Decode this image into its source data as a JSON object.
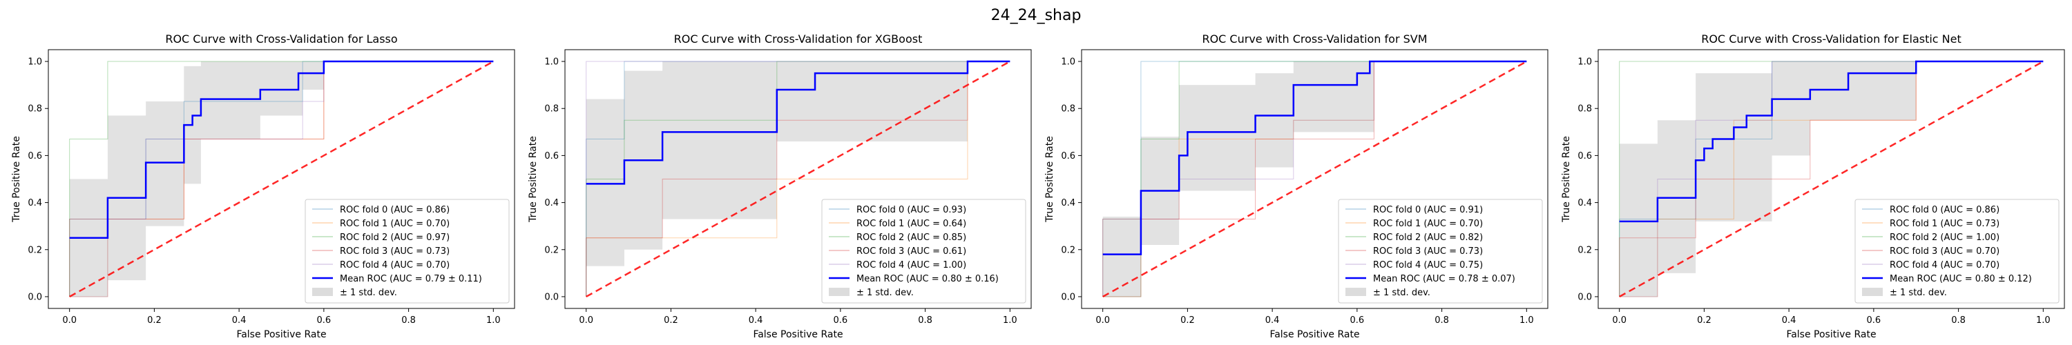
{
  "suptitle": "24_24_shap",
  "colors": {
    "fold0": "#1f77b4",
    "fold1": "#ff7f0e",
    "fold2": "#2ca02c",
    "fold3": "#d62728",
    "fold4": "#9467bd",
    "mean": "#0000ff",
    "chance": "#ff0000",
    "band": "#bfbfbf"
  },
  "chart_data": [
    {
      "type": "line",
      "title": "ROC Curve with Cross-Validation for Lasso",
      "xlabel": "False Positive Rate",
      "ylabel": "True Positive Rate",
      "xlim": [
        -0.05,
        1.05
      ],
      "ylim": [
        -0.05,
        1.05
      ],
      "xticks": [
        "0.0",
        "0.2",
        "0.4",
        "0.6",
        "0.8",
        "1.0"
      ],
      "yticks": [
        "0.0",
        "0.2",
        "0.4",
        "0.6",
        "0.8",
        "1.0"
      ],
      "grid": false,
      "legend_position": "lower right",
      "folds": [
        {
          "name": "ROC fold 0 (AUC = 0.86)",
          "x": [
            0,
            0,
            0.18,
            0.18,
            0.27,
            0.27,
            0.55,
            0.55,
            1.0
          ],
          "y": [
            0,
            0.33,
            0.33,
            0.67,
            0.67,
            0.83,
            0.83,
            1.0,
            1.0
          ]
        },
        {
          "name": "ROC fold 1 (AUC = 0.70)",
          "x": [
            0,
            0.09,
            0.09,
            0.27,
            0.27,
            0.6,
            0.6,
            1.0
          ],
          "y": [
            0,
            0,
            0.33,
            0.33,
            0.67,
            0.67,
            1.0,
            1.0
          ]
        },
        {
          "name": "ROC fold 2 (AUC = 0.97)",
          "x": [
            0,
            0,
            0.09,
            0.09,
            1.0
          ],
          "y": [
            0,
            0.67,
            0.67,
            1.0,
            1.0
          ]
        },
        {
          "name": "ROC fold 3 (AUC = 0.73)",
          "x": [
            0,
            0,
            0.27,
            0.27,
            0.6,
            0.6,
            1.0
          ],
          "y": [
            0,
            0.33,
            0.33,
            0.67,
            0.67,
            1.0,
            1.0
          ]
        },
        {
          "name": "ROC fold 4 (AUC = 0.70)",
          "x": [
            0,
            0.09,
            0.09,
            0.18,
            0.18,
            0.55,
            0.55,
            0.6,
            0.6,
            1.0
          ],
          "y": [
            0,
            0,
            0.33,
            0.33,
            0.67,
            0.67,
            0.83,
            0.83,
            1.0,
            1.0
          ]
        }
      ],
      "mean": {
        "name": "Mean ROC (AUC = 0.79 ± 0.11)",
        "x": [
          0,
          0.0,
          0.09,
          0.09,
          0.18,
          0.18,
          0.27,
          0.27,
          0.29,
          0.29,
          0.31,
          0.31,
          0.45,
          0.45,
          0.54,
          0.54,
          0.6,
          0.6,
          1.0
        ],
        "y": [
          0.25,
          0.25,
          0.25,
          0.42,
          0.42,
          0.57,
          0.57,
          0.73,
          0.73,
          0.77,
          0.77,
          0.84,
          0.84,
          0.88,
          0.88,
          0.95,
          0.95,
          1.0,
          1.0
        ]
      },
      "std_band": {
        "name": "± 1 std. dev.",
        "x": [
          0,
          0.09,
          0.09,
          0.18,
          0.18,
          0.27,
          0.27,
          0.31,
          0.31,
          0.45,
          0.45,
          0.55,
          0.55,
          0.6,
          0.6,
          1.0
        ],
        "upper": [
          0.5,
          0.5,
          0.77,
          0.77,
          0.83,
          0.83,
          0.98,
          0.98,
          1.0,
          1.0,
          1.0,
          1.0,
          1.0,
          1.0,
          1.0,
          1.0
        ],
        "lower": [
          0.0,
          0.0,
          0.07,
          0.07,
          0.3,
          0.3,
          0.48,
          0.48,
          0.67,
          0.67,
          0.77,
          0.77,
          0.88,
          0.88,
          1.0,
          1.0
        ]
      }
    },
    {
      "type": "line",
      "title": "ROC Curve with Cross-Validation for XGBoost",
      "xlabel": "False Positive Rate",
      "ylabel": "True Positive Rate",
      "xlim": [
        -0.05,
        1.05
      ],
      "ylim": [
        -0.05,
        1.05
      ],
      "xticks": [
        "0.0",
        "0.2",
        "0.4",
        "0.6",
        "0.8",
        "1.0"
      ],
      "yticks": [
        "0.0",
        "0.2",
        "0.4",
        "0.6",
        "0.8",
        "1.0"
      ],
      "grid": false,
      "legend_position": "lower right",
      "folds": [
        {
          "name": "ROC fold 0 (AUC = 0.93)",
          "x": [
            0,
            0,
            0.09,
            0.09,
            1.0
          ],
          "y": [
            0,
            0.67,
            0.67,
            1.0,
            1.0
          ]
        },
        {
          "name": "ROC fold 1 (AUC = 0.64)",
          "x": [
            0,
            0,
            0.45,
            0.45,
            0.9,
            0.9,
            1.0
          ],
          "y": [
            0,
            0.25,
            0.25,
            0.5,
            0.5,
            1.0,
            1.0
          ]
        },
        {
          "name": "ROC fold 2 (AUC = 0.85)",
          "x": [
            0,
            0,
            0.09,
            0.09,
            0.45,
            0.45,
            1.0
          ],
          "y": [
            0,
            0.5,
            0.5,
            0.75,
            0.75,
            1.0,
            1.0
          ]
        },
        {
          "name": "ROC fold 3 (AUC = 0.61)",
          "x": [
            0,
            0,
            0.18,
            0.18,
            0.45,
            0.45,
            0.9,
            0.9,
            1.0
          ],
          "y": [
            0,
            0.25,
            0.25,
            0.5,
            0.5,
            0.75,
            0.75,
            1.0,
            1.0
          ]
        },
        {
          "name": "ROC fold 4 (AUC = 1.00)",
          "x": [
            0,
            0,
            1.0
          ],
          "y": [
            0,
            1.0,
            1.0
          ]
        }
      ],
      "mean": {
        "name": "Mean ROC (AUC = 0.80 ± 0.16)",
        "x": [
          0,
          0.0,
          0.09,
          0.09,
          0.18,
          0.18,
          0.45,
          0.45,
          0.54,
          0.54,
          0.9,
          0.9,
          1.0
        ],
        "y": [
          0.48,
          0.48,
          0.48,
          0.58,
          0.58,
          0.7,
          0.7,
          0.88,
          0.88,
          0.95,
          0.95,
          1.0,
          1.0
        ]
      },
      "std_band": {
        "name": "± 1 std. dev.",
        "x": [
          0,
          0.09,
          0.09,
          0.18,
          0.18,
          0.45,
          0.45,
          0.9,
          0.9,
          1.0
        ],
        "upper": [
          0.84,
          0.84,
          0.96,
          0.96,
          1.0,
          1.0,
          1.0,
          1.0,
          1.0,
          1.0
        ],
        "lower": [
          0.13,
          0.13,
          0.2,
          0.2,
          0.33,
          0.33,
          0.66,
          0.66,
          1.0,
          1.0
        ]
      }
    },
    {
      "type": "line",
      "title": "ROC Curve with Cross-Validation for SVM",
      "xlabel": "False Positive Rate",
      "ylabel": "True Positive Rate",
      "xlim": [
        -0.05,
        1.05
      ],
      "ylim": [
        -0.05,
        1.05
      ],
      "xticks": [
        "0.0",
        "0.2",
        "0.4",
        "0.6",
        "0.8",
        "1.0"
      ],
      "yticks": [
        "0.0",
        "0.2",
        "0.4",
        "0.6",
        "0.8",
        "1.0"
      ],
      "grid": false,
      "legend_position": "lower right",
      "folds": [
        {
          "name": "ROC fold 0 (AUC = 0.91)",
          "x": [
            0,
            0,
            0.09,
            0.09,
            1.0
          ],
          "y": [
            0,
            0.33,
            0.33,
            1.0,
            1.0
          ]
        },
        {
          "name": "ROC fold 1 (AUC = 0.70)",
          "x": [
            0,
            0,
            0.18,
            0.18,
            0.45,
            0.45,
            0.64,
            0.64,
            1.0
          ],
          "y": [
            0,
            0.33,
            0.33,
            0.67,
            0.67,
            0.75,
            0.75,
            1.0,
            1.0
          ]
        },
        {
          "name": "ROC fold 2 (AUC = 0.82)",
          "x": [
            0,
            0.09,
            0.09,
            0.18,
            0.18,
            1.0
          ],
          "y": [
            0,
            0,
            0.67,
            0.67,
            1.0,
            1.0
          ]
        },
        {
          "name": "ROC fold 3 (AUC = 0.73)",
          "x": [
            0,
            0.09,
            0.09,
            0.36,
            0.36,
            0.64,
            0.64,
            1.0
          ],
          "y": [
            0,
            0,
            0.33,
            0.33,
            0.67,
            0.67,
            1.0,
            1.0
          ]
        },
        {
          "name": "ROC fold 4 (AUC = 0.75)",
          "x": [
            0,
            0,
            0.18,
            0.18,
            0.45,
            0.45,
            0.64,
            0.64,
            1.0
          ],
          "y": [
            0,
            0.33,
            0.33,
            0.5,
            0.5,
            0.75,
            0.75,
            1.0,
            1.0
          ]
        }
      ],
      "mean": {
        "name": "Mean ROC (AUC = 0.78 ± 0.07)",
        "x": [
          0,
          0.0,
          0.09,
          0.09,
          0.18,
          0.18,
          0.2,
          0.2,
          0.36,
          0.36,
          0.45,
          0.45,
          0.6,
          0.6,
          0.63,
          0.63,
          1.0
        ],
        "y": [
          0.18,
          0.18,
          0.18,
          0.45,
          0.45,
          0.6,
          0.6,
          0.7,
          0.7,
          0.77,
          0.77,
          0.9,
          0.9,
          0.95,
          0.95,
          1.0,
          1.0
        ]
      },
      "std_band": {
        "name": "± 1 std. dev.",
        "x": [
          0,
          0.09,
          0.09,
          0.18,
          0.18,
          0.36,
          0.36,
          0.45,
          0.45,
          0.64,
          0.64,
          1.0
        ],
        "upper": [
          0.34,
          0.34,
          0.68,
          0.68,
          0.9,
          0.9,
          0.95,
          0.95,
          1.0,
          1.0,
          1.0,
          1.0
        ],
        "lower": [
          0.0,
          0.0,
          0.22,
          0.22,
          0.45,
          0.45,
          0.55,
          0.55,
          0.7,
          0.7,
          1.0,
          1.0
        ]
      }
    },
    {
      "type": "line",
      "title": "ROC Curve with Cross-Validation for Elastic Net",
      "xlabel": "False Positive Rate",
      "ylabel": "True Positive Rate",
      "xlim": [
        -0.05,
        1.05
      ],
      "ylim": [
        -0.05,
        1.05
      ],
      "xticks": [
        "0.0",
        "0.2",
        "0.4",
        "0.6",
        "0.8",
        "1.0"
      ],
      "yticks": [
        "0.0",
        "0.2",
        "0.4",
        "0.6",
        "0.8",
        "1.0"
      ],
      "grid": false,
      "legend_position": "lower right",
      "folds": [
        {
          "name": "ROC fold 0 (AUC = 0.86)",
          "x": [
            0,
            0,
            0.18,
            0.18,
            0.36,
            0.36,
            1.0
          ],
          "y": [
            0,
            0.33,
            0.33,
            0.67,
            0.67,
            1.0,
            1.0
          ]
        },
        {
          "name": "ROC fold 1 (AUC = 0.73)",
          "x": [
            0,
            0.09,
            0.09,
            0.27,
            0.27,
            0.7,
            0.7,
            1.0
          ],
          "y": [
            0,
            0,
            0.33,
            0.33,
            0.75,
            0.75,
            1.0,
            1.0
          ]
        },
        {
          "name": "ROC fold 2 (AUC = 1.00)",
          "x": [
            0,
            0,
            1.0
          ],
          "y": [
            0,
            1.0,
            1.0
          ]
        },
        {
          "name": "ROC fold 3 (AUC = 0.70)",
          "x": [
            0,
            0,
            0.18,
            0.18,
            0.45,
            0.45,
            0.7,
            0.7,
            1.0
          ],
          "y": [
            0,
            0.25,
            0.25,
            0.5,
            0.5,
            0.75,
            0.75,
            1.0,
            1.0
          ]
        },
        {
          "name": "ROC fold 4 (AUC = 0.70)",
          "x": [
            0,
            0.09,
            0.09,
            0.18,
            0.18,
            0.36,
            0.36,
            1.0
          ],
          "y": [
            0,
            0,
            0.5,
            0.5,
            0.75,
            0.75,
            1.0,
            1.0
          ]
        }
      ],
      "mean": {
        "name": "Mean ROC (AUC = 0.80 ± 0.12)",
        "x": [
          0,
          0.0,
          0.09,
          0.09,
          0.18,
          0.18,
          0.2,
          0.2,
          0.22,
          0.22,
          0.27,
          0.27,
          0.3,
          0.3,
          0.36,
          0.36,
          0.45,
          0.45,
          0.54,
          0.54,
          0.7,
          0.7,
          1.0
        ],
        "y": [
          0.32,
          0.32,
          0.32,
          0.42,
          0.42,
          0.58,
          0.58,
          0.63,
          0.63,
          0.67,
          0.67,
          0.72,
          0.72,
          0.77,
          0.77,
          0.84,
          0.84,
          0.88,
          0.88,
          0.95,
          0.95,
          1.0,
          1.0
        ]
      },
      "std_band": {
        "name": "± 1 std. dev.",
        "x": [
          0,
          0.09,
          0.09,
          0.18,
          0.18,
          0.36,
          0.36,
          0.45,
          0.45,
          0.7,
          0.7,
          1.0
        ],
        "upper": [
          0.65,
          0.65,
          0.75,
          0.75,
          0.95,
          0.95,
          1.0,
          1.0,
          1.0,
          1.0,
          1.0,
          1.0
        ],
        "lower": [
          0.0,
          0.0,
          0.1,
          0.1,
          0.32,
          0.32,
          0.6,
          0.6,
          0.75,
          0.75,
          1.0,
          1.0
        ]
      }
    }
  ]
}
